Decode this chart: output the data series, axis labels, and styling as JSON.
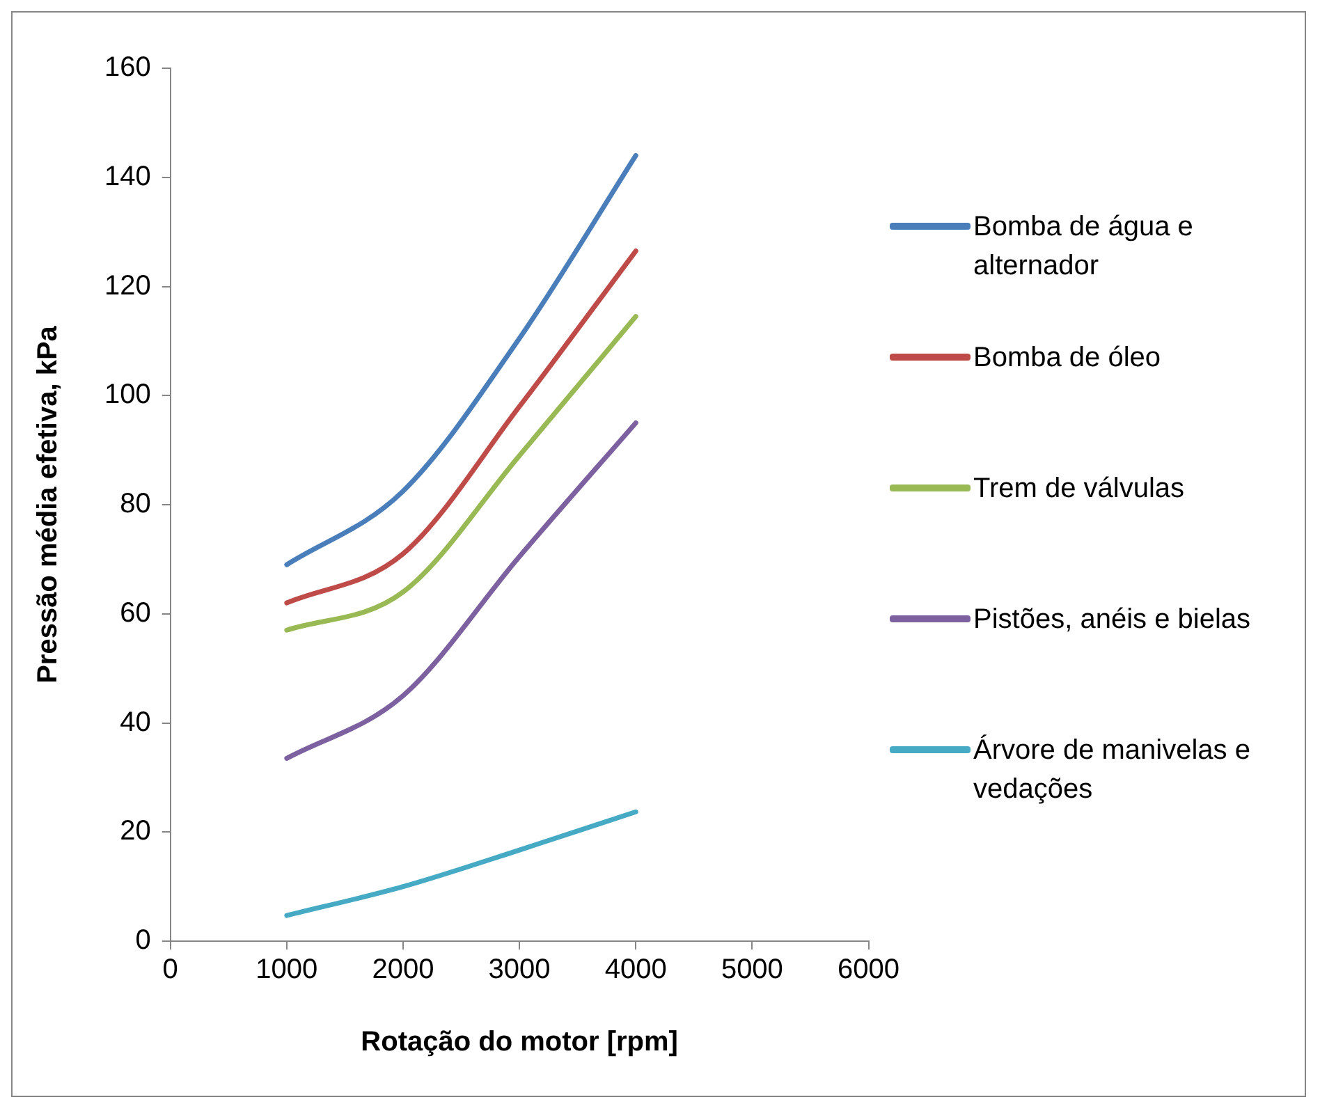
{
  "chart_data": {
    "type": "line",
    "xlabel": "Rotação do motor [rpm]",
    "ylabel": "Pressão média efetiva, kPa",
    "x": [
      1000,
      2000,
      3000,
      4000
    ],
    "series": [
      {
        "name": "Bomba de água e alternador",
        "color": "#4a7ebb",
        "values": [
          69,
          82.5,
          110.5,
          144
        ]
      },
      {
        "name": "Bomba de óleo",
        "color": "#be4b48",
        "values": [
          62,
          71,
          98,
          126.5
        ]
      },
      {
        "name": "Trem de válvulas",
        "color": "#98b954",
        "values": [
          57,
          64,
          89,
          114.5
        ]
      },
      {
        "name": "Pistões, anéis e bielas",
        "color": "#7d60a0",
        "values": [
          33.5,
          45,
          70.5,
          95
        ]
      },
      {
        "name": "Árvore de manivelas e vedações",
        "color": "#46aac5",
        "values": [
          4.7,
          10,
          16.7,
          23.7
        ]
      }
    ],
    "xlim": [
      0,
      6000
    ],
    "xticks": [
      0,
      1000,
      2000,
      3000,
      4000,
      5000,
      6000
    ],
    "ylim": [
      0,
      160
    ],
    "yticks": [
      0,
      20,
      40,
      60,
      80,
      100,
      120,
      140,
      160
    ],
    "grid": false,
    "legend": "right",
    "marker": "none",
    "line_style": "solid"
  }
}
